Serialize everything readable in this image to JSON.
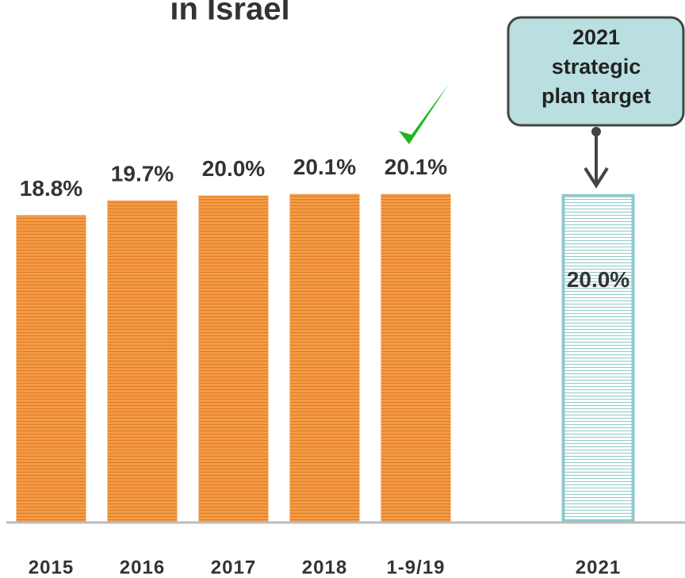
{
  "chart_data": {
    "type": "bar",
    "title": "in Israel",
    "categories": [
      "2015",
      "2016",
      "2017",
      "2018",
      "1-9/19",
      null,
      "2021"
    ],
    "values": [
      18.8,
      19.7,
      20.0,
      20.1,
      20.1,
      null,
      20.0
    ],
    "value_labels": [
      "18.8%",
      "19.7%",
      "20.0%",
      "20.1%",
      "20.1%",
      null,
      "20.0%"
    ],
    "colors": [
      "#f39a45",
      "#f39a45",
      "#f39a45",
      "#f39a45",
      "#f39a45",
      null,
      "#8ec9cc"
    ],
    "bar_styles": [
      "solid",
      "solid",
      "solid",
      "solid",
      "solid",
      null,
      "outline"
    ],
    "ylim": [
      0,
      32
    ],
    "annotation": [
      "2021",
      "strategic",
      "plan target"
    ]
  }
}
